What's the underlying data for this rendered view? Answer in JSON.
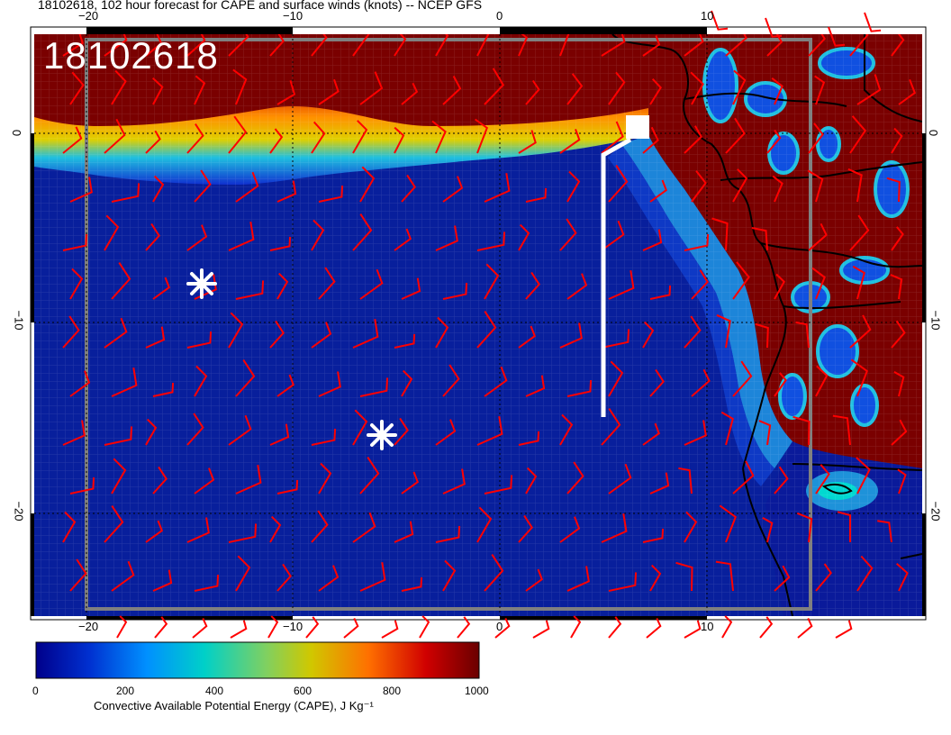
{
  "title": "18102618, 102 hour forecast for CAPE and surface winds (knots) -- NCEP GFS",
  "timestamp_label": "18102618",
  "axes": {
    "lon_ticks": [
      "−20",
      "−10",
      "0",
      "10"
    ],
    "lat_ticks": [
      "0",
      "−10",
      "−20"
    ]
  },
  "colorbar": {
    "ticks": [
      "0",
      "200",
      "400",
      "600",
      "800",
      "1000"
    ],
    "label": "Convective Available Potential Energy (CAPE), J Kg⁻¹",
    "colors": [
      "#00008b",
      "#0050ff",
      "#00c8d0",
      "#c8c800",
      "#ff5000",
      "#780000"
    ]
  },
  "colors": {
    "wind_barbs": "#ff0000",
    "flight_track": "#ffffff",
    "markers": "#ffffff",
    "ocean_low_cape": "#0a1a8c",
    "land_high_cape": "#7a0000"
  },
  "icons": {
    "markers": "asterisk",
    "track_endpoint": "square"
  }
}
